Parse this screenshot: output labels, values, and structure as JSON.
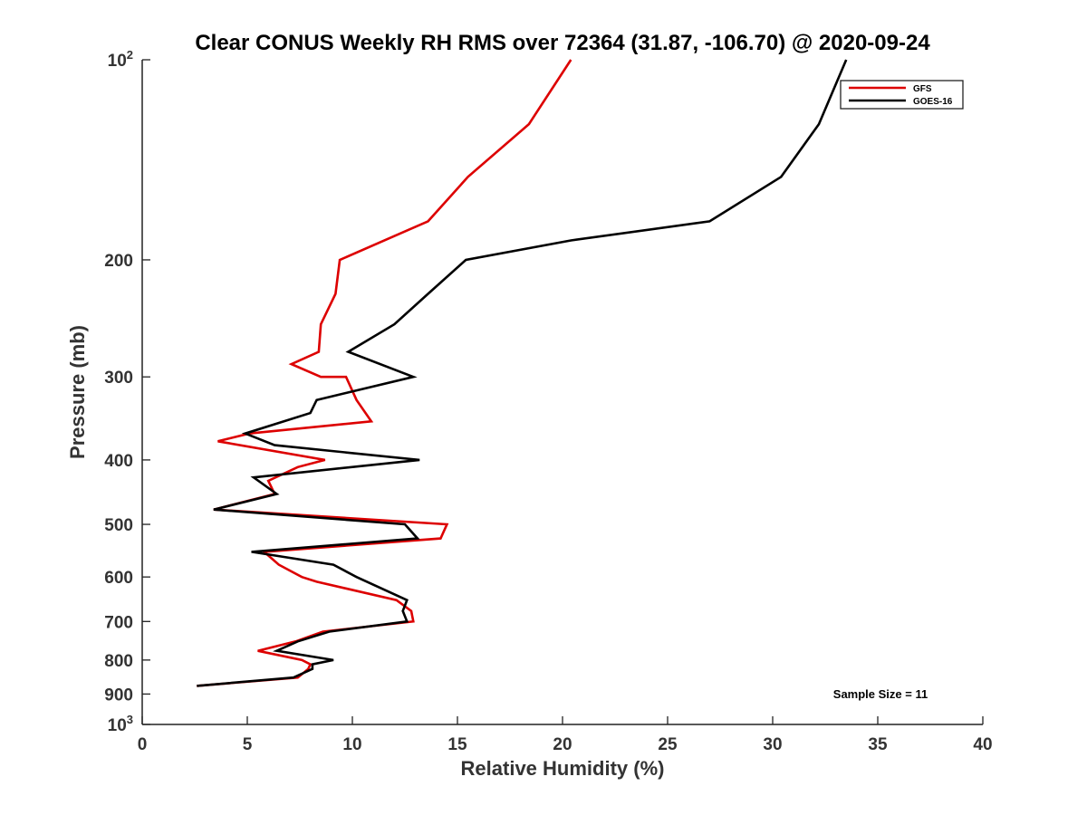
{
  "chart_data": {
    "type": "line",
    "title": "Clear CONUS Weekly RH RMS over 72364 (31.87, -106.70) @ 2020-09-24",
    "xlabel": "Relative Humidity (%)",
    "ylabel": "Pressure (mb)",
    "xlim": [
      0,
      40
    ],
    "ylim": [
      100,
      1000
    ],
    "y_scale": "log",
    "y_reversed": true,
    "x_ticks": [
      0,
      5,
      10,
      15,
      20,
      25,
      30,
      35,
      40
    ],
    "x_tick_labels": [
      "0",
      "5",
      "10",
      "15",
      "20",
      "25",
      "30",
      "35",
      "40"
    ],
    "y_ticks": [
      {
        "value": 100,
        "base": "10",
        "exp": "2"
      },
      {
        "value": 200,
        "label": "200"
      },
      {
        "value": 300,
        "label": "300"
      },
      {
        "value": 400,
        "label": "400"
      },
      {
        "value": 500,
        "label": "500"
      },
      {
        "value": 600,
        "label": "600"
      },
      {
        "value": 700,
        "label": "700"
      },
      {
        "value": 800,
        "label": "800"
      },
      {
        "value": 900,
        "label": "900"
      },
      {
        "value": 1000,
        "base": "10",
        "exp": "3"
      }
    ],
    "grid": false,
    "legend_position": "top-right",
    "annotation": "Sample Size = 11",
    "series": [
      {
        "name": "GFS",
        "color": "#dd0000",
        "points": [
          [
            20.4,
            100
          ],
          [
            18.4,
            125
          ],
          [
            15.5,
            150
          ],
          [
            13.6,
            175
          ],
          [
            9.4,
            200
          ],
          [
            9.2,
            225
          ],
          [
            8.5,
            250
          ],
          [
            8.4,
            275
          ],
          [
            7.1,
            287
          ],
          [
            8.5,
            300
          ],
          [
            9.7,
            300
          ],
          [
            10.2,
            325
          ],
          [
            10.9,
            350
          ],
          [
            5.1,
            365
          ],
          [
            3.6,
            375
          ],
          [
            8.7,
            400
          ],
          [
            7.4,
            410
          ],
          [
            6.0,
            430
          ],
          [
            6.3,
            450
          ],
          [
            3.4,
            475
          ],
          [
            14.5,
            500
          ],
          [
            14.2,
            525
          ],
          [
            5.8,
            550
          ],
          [
            6.5,
            575
          ],
          [
            7.6,
            600
          ],
          [
            8.3,
            610
          ],
          [
            12.1,
            650
          ],
          [
            12.8,
            675
          ],
          [
            12.9,
            700
          ],
          [
            8.6,
            725
          ],
          [
            7.3,
            750
          ],
          [
            5.5,
            775
          ],
          [
            7.6,
            800
          ],
          [
            8.0,
            812
          ],
          [
            7.9,
            825
          ],
          [
            7.4,
            850
          ],
          [
            2.6,
            875
          ]
        ]
      },
      {
        "name": "GOES-16",
        "color": "#000000",
        "points": [
          [
            33.5,
            100
          ],
          [
            32.2,
            125
          ],
          [
            30.4,
            150
          ],
          [
            27.0,
            175
          ],
          [
            20.4,
            187
          ],
          [
            15.4,
            200
          ],
          [
            13.6,
            225
          ],
          [
            12.0,
            250
          ],
          [
            9.8,
            275
          ],
          [
            12.9,
            300
          ],
          [
            8.3,
            325
          ],
          [
            8.0,
            340
          ],
          [
            4.9,
            365
          ],
          [
            6.3,
            380
          ],
          [
            13.2,
            400
          ],
          [
            5.3,
            425
          ],
          [
            6.4,
            450
          ],
          [
            3.4,
            475
          ],
          [
            12.5,
            500
          ],
          [
            13.1,
            525
          ],
          [
            5.2,
            550
          ],
          [
            9.1,
            575
          ],
          [
            10.2,
            600
          ],
          [
            12.6,
            650
          ],
          [
            12.4,
            675
          ],
          [
            12.6,
            700
          ],
          [
            8.9,
            725
          ],
          [
            7.4,
            750
          ],
          [
            6.4,
            775
          ],
          [
            9.1,
            800
          ],
          [
            8.1,
            812
          ],
          [
            8.1,
            825
          ],
          [
            7.2,
            850
          ],
          [
            2.6,
            875
          ]
        ]
      }
    ]
  }
}
